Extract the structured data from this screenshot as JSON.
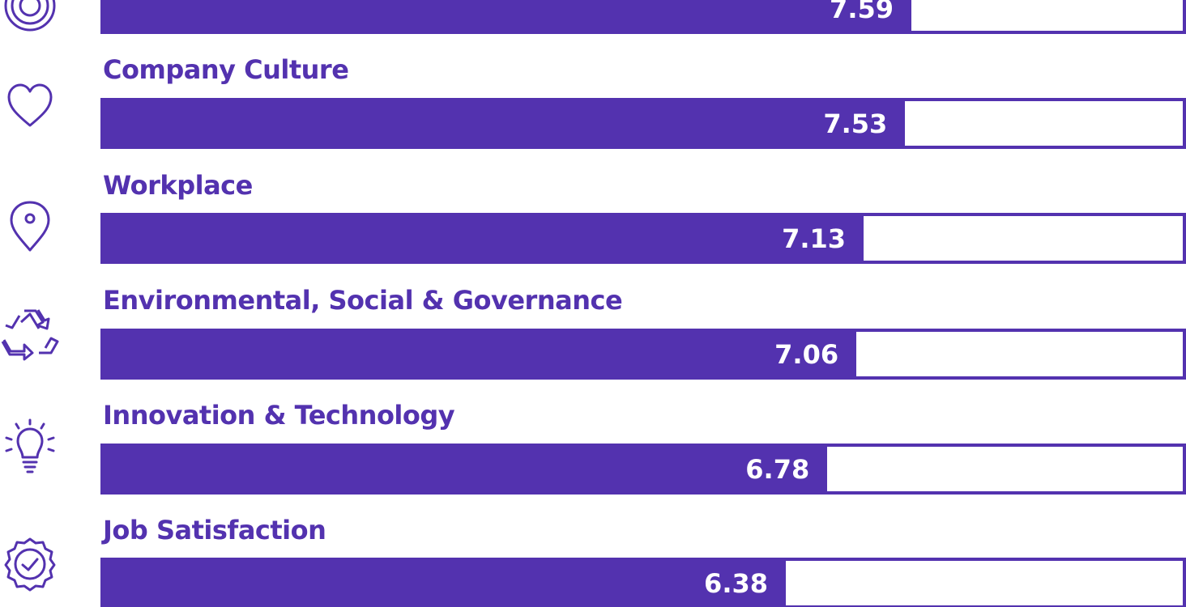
{
  "chart_data": {
    "type": "bar",
    "orientation": "horizontal",
    "categories": [
      "",
      "Company Culture",
      "Workplace",
      "Environmental, Social & Governance",
      "Innovation & Technology",
      "Job Satisfaction"
    ],
    "values": [
      7.59,
      7.53,
      7.13,
      7.06,
      6.78,
      6.38
    ],
    "value_labels": [
      "7.59",
      "7.53",
      "7.13",
      "7.06",
      "6.78",
      "6.38"
    ],
    "xlim": [
      0,
      10
    ],
    "grid": false,
    "legend": "none"
  },
  "icons": [
    "target-icon",
    "heart-icon",
    "location-pin-icon",
    "recycle-icon",
    "lightbulb-icon",
    "badge-check-icon"
  ],
  "colors": {
    "accent": "#5332AF",
    "background": "#ffffff",
    "value_text": "#ffffff"
  }
}
